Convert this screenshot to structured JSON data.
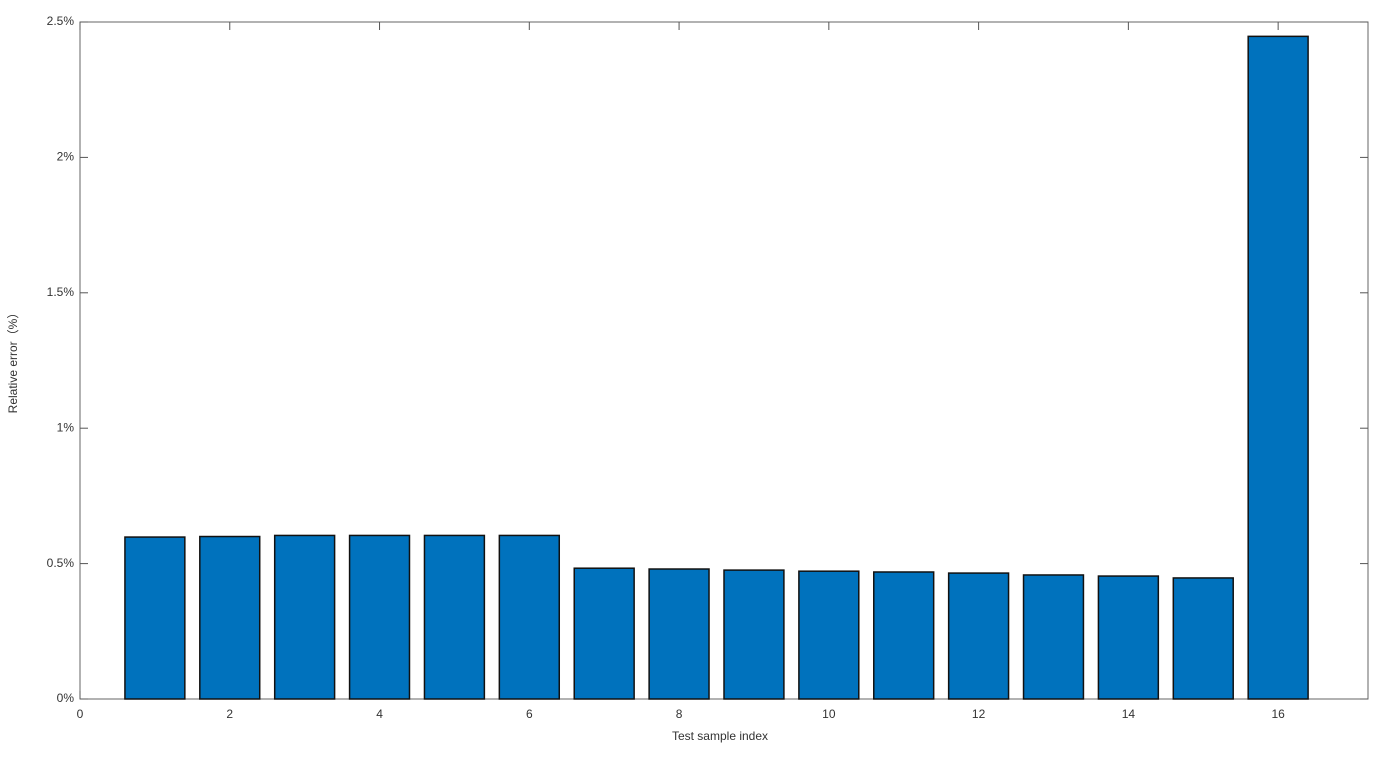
{
  "chart_data": {
    "type": "bar",
    "x_label": "Test sample index",
    "y_label": "Relative error（%）",
    "x": [
      1,
      2,
      3,
      4,
      5,
      6,
      7,
      8,
      9,
      10,
      11,
      12,
      13,
      14,
      15,
      16
    ],
    "values": [
      0.598,
      0.6,
      0.604,
      0.604,
      0.604,
      0.604,
      0.483,
      0.48,
      0.476,
      0.472,
      0.469,
      0.465,
      0.458,
      0.454,
      0.447,
      2.447
    ],
    "color": "#0072bd",
    "xlim": [
      0,
      17.2
    ],
    "xticks": [
      0,
      2,
      4,
      6,
      8,
      10,
      12,
      14,
      16
    ],
    "ylim": [
      0,
      2.5
    ],
    "yticks": [
      {
        "value": 0,
        "label": "0%"
      },
      {
        "value": 0.5,
        "label": "0.5%"
      },
      {
        "value": 1,
        "label": "1%"
      },
      {
        "value": 1.5,
        "label": "1.5%"
      },
      {
        "value": 2,
        "label": "2%"
      },
      {
        "value": 2.5,
        "label": "2.5%"
      }
    ],
    "grid": false
  }
}
